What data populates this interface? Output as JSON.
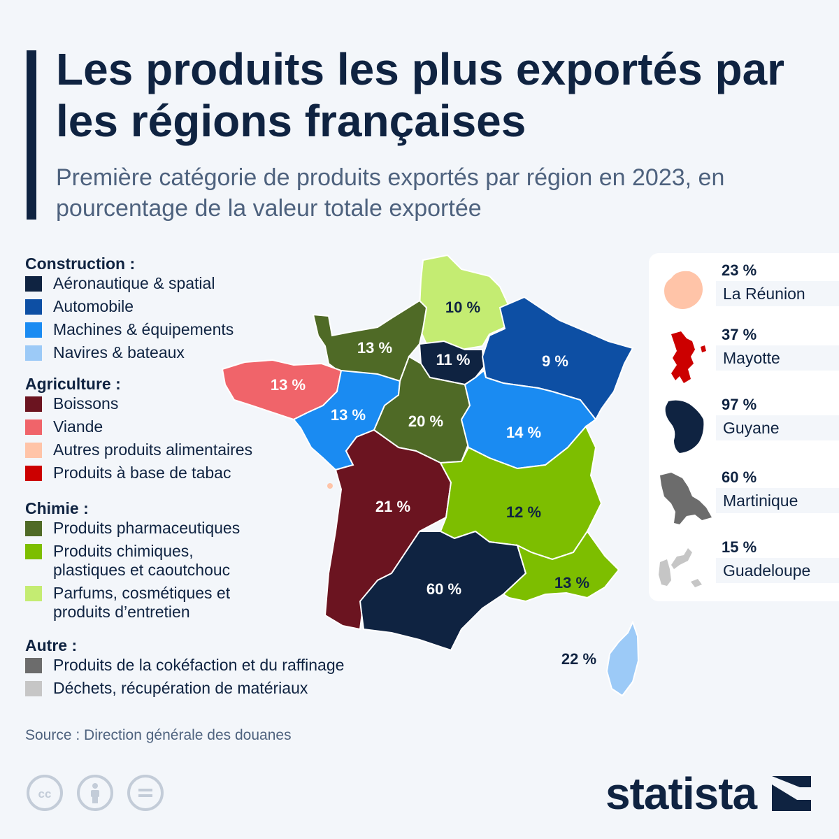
{
  "header": {
    "title": "Les produits les plus exportés par les régions françaises",
    "subtitle": "Première catégorie de produits exportés par région en 2023, en pourcentage de la valeur totale exportée"
  },
  "legend": {
    "groups": [
      {
        "title": "Construction :",
        "items": [
          {
            "label": "Aéronautique & spatial",
            "color": "#0f2341"
          },
          {
            "label": "Automobile",
            "color": "#0d4fa4"
          },
          {
            "label": "Machines & équipements",
            "color": "#1a8bf2"
          },
          {
            "label": "Navires & bateaux",
            "color": "#9ccaf7"
          }
        ]
      },
      {
        "title": "Agriculture :",
        "items": [
          {
            "label": "Boissons",
            "color": "#6b1420"
          },
          {
            "label": "Viande",
            "color": "#f0646a"
          },
          {
            "label": "Autres produits alimentaires",
            "color": "#ffc4a8"
          },
          {
            "label": "Produits à base de tabac",
            "color": "#cc0000"
          }
        ]
      },
      {
        "title": "Chimie :",
        "items": [
          {
            "label": "Produits pharmaceutiques",
            "color": "#4f6a26"
          },
          {
            "label": "Produits chimiques, plastiques et caoutchouc",
            "color": "#7dbe00"
          },
          {
            "label": "Parfums, cosmétiques et produits d’entretien",
            "color": "#c4ec72"
          }
        ]
      },
      {
        "title": "Autre :",
        "items": [
          {
            "label": "Produits de la cokéfaction et du raffinage",
            "color": "#6c6c6c"
          },
          {
            "label": "Déchets, récupération de matériaux",
            "color": "#c6c6c6"
          }
        ]
      }
    ]
  },
  "map": {
    "regions": [
      {
        "value": "10 %",
        "color": "#c4ec72",
        "label_color": "#0f2341"
      },
      {
        "value": "13 %",
        "color": "#4f6a26",
        "label_color": "#ffffff"
      },
      {
        "value": "11 %",
        "color": "#0f2341",
        "label_color": "#ffffff"
      },
      {
        "value": "9 %",
        "color": "#0d4fa4",
        "label_color": "#ffffff"
      },
      {
        "value": "13 %",
        "color": "#f0646a",
        "label_color": "#ffffff"
      },
      {
        "value": "13 %",
        "color": "#1a8bf2",
        "label_color": "#ffffff"
      },
      {
        "value": "20 %",
        "color": "#4f6a26",
        "label_color": "#ffffff"
      },
      {
        "value": "14 %",
        "color": "#1a8bf2",
        "label_color": "#ffffff"
      },
      {
        "value": "21 %",
        "color": "#6b1420",
        "label_color": "#ffffff"
      },
      {
        "value": "12 %",
        "color": "#7dbe00",
        "label_color": "#0f2341"
      },
      {
        "value": "60 %",
        "color": "#0f2341",
        "label_color": "#ffffff"
      },
      {
        "value": "13 %",
        "color": "#7dbe00",
        "label_color": "#0f2341"
      },
      {
        "value": "22 %",
        "color": "#9ccaf7",
        "label_color": "#0f2341"
      }
    ]
  },
  "overseas": [
    {
      "value": "23 %",
      "name": "La Réunion",
      "color": "#ffc4a8"
    },
    {
      "value": "37 %",
      "name": "Mayotte",
      "color": "#cc0000"
    },
    {
      "value": "97 %",
      "name": "Guyane",
      "color": "#0f2341"
    },
    {
      "value": "60 %",
      "name": "Martinique",
      "color": "#6c6c6c"
    },
    {
      "value": "15 %",
      "name": "Guadeloupe",
      "color": "#c6c6c6"
    }
  ],
  "footer": {
    "source": "Source : Direction générale des douanes",
    "brand": "statista",
    "license_icons": [
      "cc-icon",
      "attribution-icon",
      "no-derivatives-icon"
    ]
  }
}
